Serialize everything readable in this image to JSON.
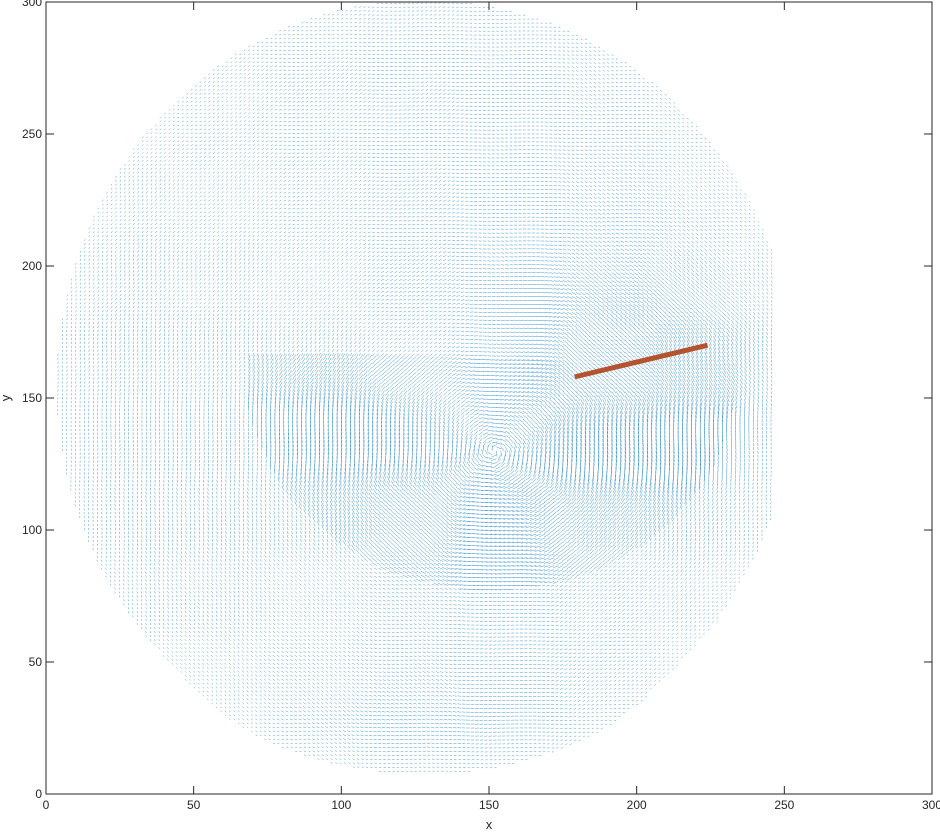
{
  "chart_data": {
    "type": "quiver",
    "title": "",
    "xlabel": "x",
    "ylabel": "y",
    "xlim": [
      0,
      300
    ],
    "ylim": [
      0,
      300
    ],
    "xticks": [
      0,
      50,
      100,
      150,
      200,
      250,
      300
    ],
    "yticks": [
      0,
      50,
      100,
      150,
      200,
      250,
      300
    ],
    "grid": false,
    "legend": "none",
    "colors": {
      "vectors": "#0072BD",
      "segment": "#B5532F",
      "axes": "#262626"
    },
    "series": [
      {
        "type": "quiver",
        "field": {
          "x_range": [
            0,
            246
          ],
          "y_range": [
            0,
            304
          ],
          "spacing": 1.5,
          "vortex_center": [
            152,
            130
          ],
          "inner_arc": {
            "center": [
              150,
              160
            ],
            "radius": 83
          },
          "outer_arc_y_range": [
            5,
            45
          ]
        }
      },
      {
        "type": "line",
        "x": [
          179,
          224
        ],
        "y": [
          158,
          170
        ]
      }
    ]
  }
}
